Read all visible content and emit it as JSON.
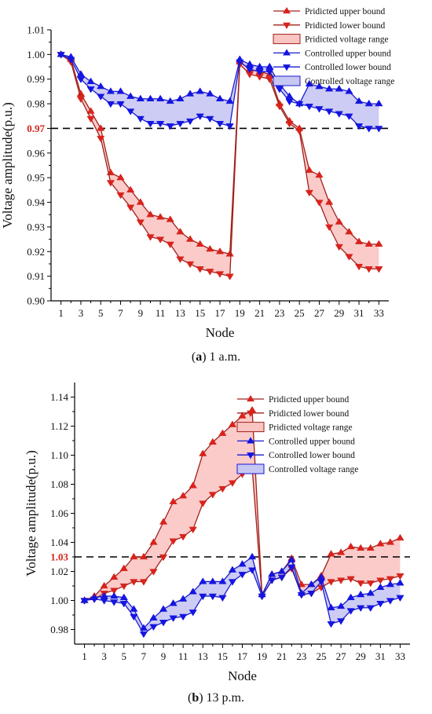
{
  "legend_labels": {
    "pred_upper": "Pridicted upper bound",
    "pred_lower": "Pridicted lower bound",
    "pred_range": "Pridicted voltage range",
    "ctrl_upper": "Controlled upper bound",
    "ctrl_lower": "Controlled lower bound",
    "ctrl_range": "Controlled voltage range"
  },
  "colors": {
    "pred_line": "#a0201a",
    "pred_marker": "#d8231c",
    "pred_fill": "#f9c5c3",
    "ctrl_line": "#1a1ad0",
    "ctrl_marker": "#1515e0",
    "ctrl_fill": "#c7c7f4",
    "threshold": "#000000",
    "threshold_label": "#d8231c"
  },
  "chart_data": [
    {
      "type": "line",
      "panel_tag": "a",
      "caption": "1 a.m.",
      "xlabel": "Node",
      "ylabel": "Voltage amplitude(p.u.)",
      "xlim": [
        0,
        34
      ],
      "ylim": [
        0.9,
        1.01
      ],
      "xticks": [
        1,
        3,
        5,
        7,
        9,
        11,
        13,
        15,
        17,
        19,
        21,
        23,
        25,
        27,
        29,
        31,
        33
      ],
      "yticks": [
        "0.90",
        "0.91",
        "0.92",
        "0.93",
        "0.94",
        "0.95",
        "0.96",
        "0.97",
        "0.98",
        "0.99",
        "1.00",
        "1.01"
      ],
      "threshold": 0.97,
      "threshold_label": "0.97",
      "legend_position": "top-right",
      "x": [
        1,
        2,
        3,
        4,
        5,
        6,
        7,
        8,
        9,
        10,
        11,
        12,
        13,
        14,
        15,
        16,
        17,
        18,
        19,
        20,
        21,
        22,
        23,
        24,
        25,
        26,
        27,
        28,
        29,
        30,
        31,
        32,
        33
      ],
      "series": [
        {
          "name": "Pridicted upper bound",
          "marker": "triangle-up",
          "values": [
            1.0,
            0.998,
            0.984,
            0.977,
            0.97,
            0.952,
            0.95,
            0.945,
            0.94,
            0.935,
            0.934,
            0.933,
            0.928,
            0.925,
            0.923,
            0.921,
            0.92,
            0.919,
            0.997,
            0.994,
            0.993,
            0.992,
            0.98,
            0.973,
            0.97,
            0.953,
            0.951,
            0.94,
            0.932,
            0.928,
            0.924,
            0.923,
            0.923
          ]
        },
        {
          "name": "Pridicted lower bound",
          "marker": "triangle-down",
          "values": [
            1.0,
            0.997,
            0.982,
            0.974,
            0.966,
            0.948,
            0.943,
            0.938,
            0.932,
            0.926,
            0.925,
            0.923,
            0.917,
            0.915,
            0.913,
            0.912,
            0.911,
            0.91,
            0.996,
            0.992,
            0.991,
            0.99,
            0.979,
            0.972,
            0.969,
            0.944,
            0.94,
            0.93,
            0.922,
            0.918,
            0.914,
            0.913,
            0.913
          ]
        },
        {
          "name": "Controlled upper bound",
          "marker": "triangle-up",
          "values": [
            1.0,
            0.999,
            0.992,
            0.989,
            0.987,
            0.985,
            0.985,
            0.983,
            0.982,
            0.982,
            0.982,
            0.981,
            0.982,
            0.984,
            0.985,
            0.984,
            0.982,
            0.981,
            0.998,
            0.996,
            0.995,
            0.995,
            0.988,
            0.983,
            0.98,
            0.988,
            0.987,
            0.986,
            0.986,
            0.985,
            0.981,
            0.98,
            0.98
          ]
        },
        {
          "name": "Controlled lower bound",
          "marker": "triangle-down",
          "values": [
            1.0,
            0.998,
            0.99,
            0.986,
            0.983,
            0.98,
            0.98,
            0.977,
            0.974,
            0.972,
            0.972,
            0.971,
            0.972,
            0.973,
            0.975,
            0.974,
            0.972,
            0.971,
            0.997,
            0.994,
            0.993,
            0.993,
            0.986,
            0.981,
            0.98,
            0.979,
            0.978,
            0.977,
            0.976,
            0.975,
            0.971,
            0.97,
            0.97
          ]
        }
      ],
      "ranges": [
        {
          "name": "Pridicted voltage range",
          "upper": "Pridicted upper bound",
          "lower": "Pridicted lower bound"
        },
        {
          "name": "Controlled voltage range",
          "upper": "Controlled upper bound",
          "lower": "Controlled lower bound"
        }
      ]
    },
    {
      "type": "line",
      "panel_tag": "b",
      "caption": "13 p.m.",
      "xlabel": "Node",
      "ylabel": "Voltage amplitude(p.u.)",
      "xlim": [
        0,
        34
      ],
      "ylim": [
        0.97,
        1.15
      ],
      "xticks": [
        1,
        3,
        5,
        7,
        9,
        11,
        13,
        15,
        17,
        19,
        21,
        23,
        25,
        27,
        29,
        31,
        33
      ],
      "yticks": [
        "0.98",
        "1.00",
        "1.02",
        "1.04",
        "1.06",
        "1.08",
        "1.10",
        "1.12",
        "1.14"
      ],
      "threshold": 1.03,
      "threshold_label": "1.03",
      "legend_position": "top-right",
      "x": [
        1,
        2,
        3,
        4,
        5,
        6,
        7,
        8,
        9,
        10,
        11,
        12,
        13,
        14,
        15,
        16,
        17,
        18,
        19,
        20,
        21,
        22,
        23,
        24,
        25,
        26,
        27,
        28,
        29,
        30,
        31,
        32,
        33
      ],
      "series": [
        {
          "name": "Pridicted upper bound",
          "marker": "triangle-up",
          "values": [
            1.0,
            1.003,
            1.01,
            1.016,
            1.022,
            1.03,
            1.03,
            1.04,
            1.054,
            1.068,
            1.072,
            1.079,
            1.101,
            1.109,
            1.115,
            1.121,
            1.127,
            1.131,
            1.004,
            1.018,
            1.02,
            1.029,
            1.011,
            1.011,
            1.017,
            1.032,
            1.033,
            1.037,
            1.036,
            1.036,
            1.039,
            1.04,
            1.043
          ]
        },
        {
          "name": "Pridicted lower bound",
          "marker": "triangle-down",
          "values": [
            1.0,
            1.001,
            1.005,
            1.007,
            1.01,
            1.013,
            1.013,
            1.02,
            1.03,
            1.041,
            1.044,
            1.049,
            1.067,
            1.073,
            1.077,
            1.081,
            1.087,
            1.091,
            1.003,
            1.014,
            1.016,
            1.022,
            1.004,
            1.005,
            1.009,
            1.013,
            1.014,
            1.015,
            1.012,
            1.012,
            1.014,
            1.015,
            1.017
          ]
        },
        {
          "name": "Controlled upper bound",
          "marker": "triangle-up",
          "values": [
            1.0,
            1.002,
            1.003,
            1.003,
            1.002,
            0.994,
            0.981,
            0.988,
            0.994,
            0.998,
            1.001,
            1.006,
            1.013,
            1.013,
            1.013,
            1.021,
            1.025,
            1.03,
            1.004,
            1.018,
            1.02,
            1.028,
            1.005,
            1.011,
            1.016,
            0.995,
            0.996,
            1.002,
            1.004,
            1.005,
            1.009,
            1.011,
            1.012
          ]
        },
        {
          "name": "Controlled lower bound",
          "marker": "triangle-down",
          "values": [
            1.0,
            1.001,
            1.0,
            0.999,
            0.998,
            0.989,
            0.977,
            0.982,
            0.985,
            0.988,
            0.989,
            0.992,
            1.003,
            1.003,
            1.002,
            1.013,
            1.018,
            1.021,
            1.003,
            1.014,
            1.016,
            1.023,
            1.004,
            1.005,
            1.013,
            0.984,
            0.986,
            0.993,
            0.995,
            0.995,
            0.998,
            1.0,
            1.002
          ]
        }
      ],
      "ranges": [
        {
          "name": "Pridicted voltage range",
          "upper": "Pridicted upper bound",
          "lower": "Pridicted lower bound"
        },
        {
          "name": "Controlled voltage range",
          "upper": "Controlled upper bound",
          "lower": "Controlled lower bound"
        }
      ]
    }
  ]
}
